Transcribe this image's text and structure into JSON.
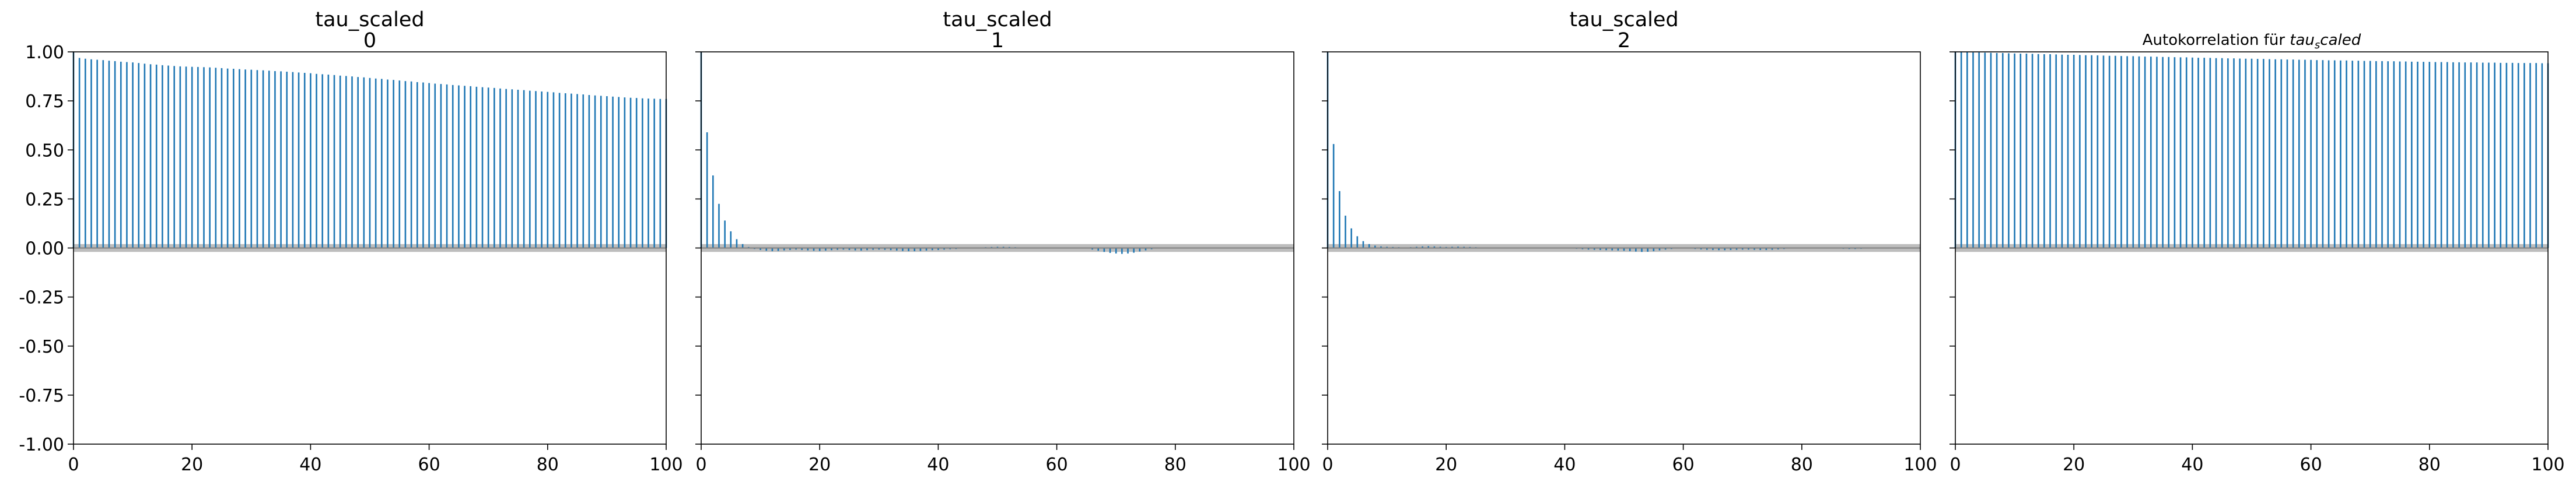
{
  "chart_data": [
    {
      "type": "bar",
      "title_line1": "tau_scaled",
      "title_line2": "0",
      "xlim": [
        0,
        100
      ],
      "ylim": [
        -1.0,
        1.0
      ],
      "xticks": [
        "0",
        "20",
        "40",
        "60",
        "80",
        "100"
      ],
      "yticks": [
        "1.00",
        "0.75",
        "0.50",
        "0.25",
        "0.00",
        "-0.25",
        "-0.50",
        "-0.75",
        "-1.00"
      ],
      "show_yticklabels": true,
      "bar_color": "#1f77b4",
      "band_color": "#bdbdbd",
      "band": 0.02,
      "lags": [
        0,
        100
      ],
      "values": [
        1.0,
        0.969,
        0.965,
        0.962,
        0.96,
        0.958,
        0.955,
        0.953,
        0.95,
        0.948,
        0.946,
        0.943,
        0.94,
        0.937,
        0.935,
        0.932,
        0.93,
        0.928,
        0.926,
        0.925,
        0.924,
        0.923,
        0.922,
        0.921,
        0.919,
        0.917,
        0.915,
        0.914,
        0.912,
        0.91,
        0.909,
        0.907,
        0.906,
        0.904,
        0.902,
        0.901,
        0.899,
        0.897,
        0.895,
        0.893,
        0.891,
        0.888,
        0.886,
        0.884,
        0.882,
        0.879,
        0.877,
        0.875,
        0.872,
        0.87,
        0.867,
        0.864,
        0.862,
        0.859,
        0.857,
        0.854,
        0.851,
        0.849,
        0.846,
        0.844,
        0.841,
        0.838,
        0.836,
        0.834,
        0.831,
        0.829,
        0.827,
        0.825,
        0.822,
        0.82,
        0.818,
        0.816,
        0.813,
        0.811,
        0.809,
        0.807,
        0.805,
        0.802,
        0.8,
        0.798,
        0.796,
        0.794,
        0.791,
        0.789,
        0.787,
        0.785,
        0.783,
        0.78,
        0.778,
        0.776,
        0.774,
        0.772,
        0.77,
        0.768,
        0.766,
        0.765,
        0.763,
        0.762,
        0.761,
        0.76,
        0.76
      ]
    },
    {
      "type": "bar",
      "title_line1": "tau_scaled",
      "title_line2": "1",
      "xlim": [
        0,
        100
      ],
      "ylim": [
        -1.0,
        1.0
      ],
      "xticks": [
        "0",
        "20",
        "40",
        "60",
        "80",
        "100"
      ],
      "yticks": [],
      "show_yticklabels": false,
      "bar_color": "#1f77b4",
      "band_color": "#bdbdbd",
      "band": 0.02,
      "values": [
        1.0,
        0.59,
        0.37,
        0.225,
        0.14,
        0.085,
        0.045,
        0.02,
        0.005,
        -0.005,
        -0.01,
        -0.014,
        -0.016,
        -0.015,
        -0.012,
        -0.01,
        -0.008,
        -0.01,
        -0.012,
        -0.014,
        -0.015,
        -0.013,
        -0.011,
        -0.009,
        -0.008,
        -0.01,
        -0.012,
        -0.013,
        -0.011,
        -0.009,
        -0.008,
        -0.009,
        -0.011,
        -0.013,
        -0.015,
        -0.016,
        -0.016,
        -0.015,
        -0.013,
        -0.011,
        -0.01,
        -0.008,
        -0.006,
        -0.005,
        -0.003,
        -0.001,
        0.001,
        0.003,
        0.004,
        0.005,
        0.006,
        0.006,
        0.005,
        0.004,
        0.003,
        0.002,
        0.001,
        0.0,
        -0.001,
        0.0,
        0.001,
        0.002,
        0.003,
        0.002,
        0.0,
        -0.003,
        -0.008,
        -0.014,
        -0.02,
        -0.025,
        -0.028,
        -0.03,
        -0.028,
        -0.024,
        -0.018,
        -0.012,
        -0.006,
        -0.002,
        0.001,
        0.002,
        0.002,
        0.001,
        0.0,
        -0.001,
        -0.002,
        -0.002,
        -0.001,
        0.0,
        0.001,
        0.001,
        0.0,
        -0.001,
        -0.002,
        -0.002,
        -0.001,
        0.0,
        0.001,
        0.002,
        0.002,
        0.001,
        0.0
      ]
    },
    {
      "type": "bar",
      "title_line1": "tau_scaled",
      "title_line2": "2",
      "xlim": [
        0,
        100
      ],
      "ylim": [
        -1.0,
        1.0
      ],
      "xticks": [
        "0",
        "20",
        "40",
        "60",
        "80",
        "100"
      ],
      "yticks": [],
      "show_yticklabels": false,
      "bar_color": "#1f77b4",
      "band_color": "#bdbdbd",
      "band": 0.02,
      "values": [
        1.0,
        0.53,
        0.29,
        0.165,
        0.1,
        0.06,
        0.035,
        0.02,
        0.012,
        0.008,
        0.006,
        0.005,
        0.004,
        0.003,
        0.004,
        0.006,
        0.008,
        0.009,
        0.008,
        0.006,
        0.005,
        0.006,
        0.007,
        0.006,
        0.005,
        0.004,
        0.003,
        0.002,
        0.002,
        0.003,
        0.003,
        0.002,
        0.001,
        0.0,
        -0.001,
        -0.002,
        -0.002,
        -0.001,
        0.0,
        0.0,
        -0.001,
        -0.002,
        -0.004,
        -0.006,
        -0.008,
        -0.009,
        -0.01,
        -0.011,
        -0.012,
        -0.013,
        -0.014,
        -0.016,
        -0.018,
        -0.02,
        -0.019,
        -0.016,
        -0.012,
        -0.008,
        -0.005,
        -0.003,
        -0.002,
        -0.003,
        -0.005,
        -0.007,
        -0.009,
        -0.01,
        -0.011,
        -0.011,
        -0.01,
        -0.009,
        -0.008,
        -0.008,
        -0.009,
        -0.01,
        -0.01,
        -0.009,
        -0.007,
        -0.005,
        -0.003,
        -0.001,
        0.0,
        0.001,
        0.001,
        0.0,
        -0.001,
        -0.002,
        -0.003,
        -0.004,
        -0.005,
        -0.005,
        -0.004,
        -0.003,
        -0.002,
        -0.001,
        0.0,
        0.0,
        0.001,
        0.001,
        0.0,
        0.0,
        0.0
      ]
    },
    {
      "type": "bar",
      "title_text": "Autokorrelation für ",
      "title_math": "tau",
      "title_math_sub": "s",
      "title_math_rest": "caled",
      "xlim": [
        0,
        100
      ],
      "ylim": [
        -1.0,
        1.0
      ],
      "xticks": [
        "0",
        "20",
        "40",
        "60",
        "80",
        "100"
      ],
      "yticks": [],
      "show_yticklabels": false,
      "bar_color": "#1f77b4",
      "band_color": "#bdbdbd",
      "band": 0.02,
      "values": [
        1.0,
        0.999,
        0.998,
        0.997,
        0.997,
        0.996,
        0.995,
        0.994,
        0.994,
        0.993,
        0.992,
        0.991,
        0.991,
        0.99,
        0.989,
        0.988,
        0.988,
        0.987,
        0.986,
        0.985,
        0.985,
        0.984,
        0.983,
        0.983,
        0.982,
        0.981,
        0.98,
        0.98,
        0.979,
        0.978,
        0.978,
        0.977,
        0.976,
        0.976,
        0.975,
        0.974,
        0.974,
        0.973,
        0.972,
        0.972,
        0.971,
        0.97,
        0.97,
        0.969,
        0.968,
        0.968,
        0.967,
        0.967,
        0.966,
        0.965,
        0.965,
        0.964,
        0.964,
        0.963,
        0.962,
        0.962,
        0.961,
        0.961,
        0.96,
        0.96,
        0.959,
        0.958,
        0.958,
        0.957,
        0.957,
        0.956,
        0.956,
        0.955,
        0.955,
        0.954,
        0.954,
        0.953,
        0.953,
        0.952,
        0.952,
        0.951,
        0.951,
        0.95,
        0.95,
        0.949,
        0.949,
        0.948,
        0.948,
        0.948,
        0.947,
        0.947,
        0.946,
        0.946,
        0.946,
        0.945,
        0.945,
        0.945,
        0.944,
        0.944,
        0.944,
        0.943,
        0.943,
        0.943,
        0.943,
        0.942,
        0.942
      ]
    }
  ]
}
